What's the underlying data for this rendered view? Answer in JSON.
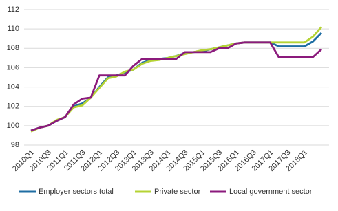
{
  "chart_data": {
    "type": "line",
    "categories": [
      "2010Q1",
      null,
      "2010Q3",
      null,
      "2011Q1",
      null,
      "2011Q3",
      null,
      "2012Q1",
      null,
      "2012Q3",
      null,
      "2013Q1",
      null,
      "2013Q3",
      null,
      "2014Q1",
      null,
      "2014Q3",
      null,
      "2015Q1",
      null,
      "2015Q3",
      null,
      "2016Q1",
      null,
      "2016Q3",
      null,
      "2017Q1",
      null,
      "2017Q3",
      null,
      "2018Q1",
      null,
      null
    ],
    "series": [
      {
        "name": "Employer sectors total",
        "color": "#1f6ea3",
        "values": [
          99.5,
          99.8,
          100.0,
          100.5,
          100.9,
          102.0,
          102.3,
          102.9,
          104.0,
          105.0,
          105.2,
          105.5,
          105.8,
          106.5,
          106.8,
          106.9,
          107.0,
          107.2,
          107.5,
          107.6,
          107.7,
          107.9,
          108.1,
          108.3,
          108.5,
          108.6,
          108.6,
          108.6,
          108.6,
          108.2,
          108.2,
          108.2,
          108.2,
          108.7,
          109.6
        ]
      },
      {
        "name": "Private sector",
        "color": "#b5d334",
        "values": [
          99.4,
          99.8,
          100.0,
          100.6,
          100.9,
          101.9,
          102.1,
          102.9,
          103.9,
          104.9,
          105.1,
          105.6,
          105.8,
          106.4,
          106.7,
          106.8,
          107.0,
          107.2,
          107.4,
          107.6,
          107.8,
          107.9,
          108.1,
          108.3,
          108.5,
          108.6,
          108.6,
          108.6,
          108.6,
          108.6,
          108.6,
          108.6,
          108.6,
          109.2,
          110.2
        ]
      },
      {
        "name": "Local government sector",
        "color": "#8b1a7c",
        "values": [
          99.5,
          99.8,
          100.0,
          100.5,
          100.9,
          102.2,
          102.8,
          102.9,
          105.2,
          105.2,
          105.2,
          105.2,
          106.2,
          106.9,
          106.9,
          106.9,
          106.9,
          106.9,
          107.6,
          107.6,
          107.6,
          107.6,
          108.0,
          108.0,
          108.5,
          108.6,
          108.6,
          108.6,
          108.6,
          107.1,
          107.1,
          107.1,
          107.1,
          107.1,
          107.9
        ]
      }
    ],
    "ylim": [
      98,
      112
    ],
    "yticks": [
      98,
      100,
      102,
      104,
      106,
      108,
      110,
      112
    ],
    "grid": true,
    "legend": "bottom"
  }
}
